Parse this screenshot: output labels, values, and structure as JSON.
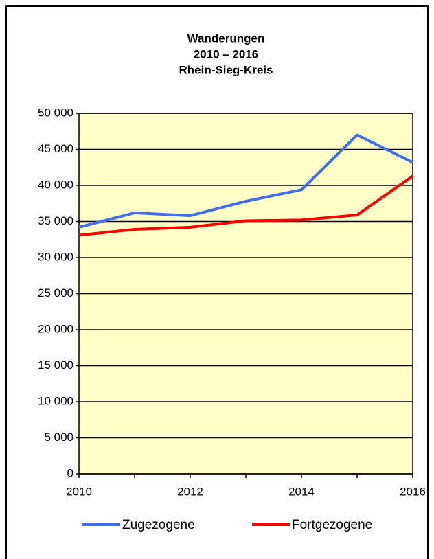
{
  "chart_data": {
    "type": "line",
    "title": [
      "Wanderungen",
      "2010 – 2016",
      "Rhein-Sieg-Kreis"
    ],
    "x": [
      2010,
      2011,
      2012,
      2013,
      2014,
      2015,
      2016
    ],
    "series": [
      {
        "name": "Zugezogene",
        "color": "#3f6ff0",
        "values": [
          34200,
          36200,
          35800,
          37800,
          39400,
          47000,
          43200
        ]
      },
      {
        "name": "Fortgezogene",
        "color": "#ff0000",
        "values": [
          33100,
          33900,
          34200,
          35100,
          35200,
          35900,
          41300
        ]
      }
    ],
    "xlim": [
      2010,
      2016
    ],
    "xticks": [
      2010,
      2012,
      2014,
      2016
    ],
    "ylim": [
      0,
      50000
    ],
    "yticks": [
      0,
      {
        "value": 5000,
        "label": "5 000"
      },
      {
        "value": 10000,
        "label": "10 000"
      },
      {
        "value": 15000,
        "label": "15 000"
      },
      {
        "value": 20000,
        "label": "20 000"
      },
      {
        "value": 25000,
        "label": "25 000"
      },
      {
        "value": 30000,
        "label": "30 000"
      },
      {
        "value": 35000,
        "label": "35 000"
      },
      {
        "value": 40000,
        "label": "40 000"
      },
      {
        "value": 45000,
        "label": "45 000"
      },
      {
        "value": 50000,
        "label": "50 000"
      }
    ],
    "grid": true,
    "legend": "bottom",
    "plot_background": "#ffffc8"
  }
}
